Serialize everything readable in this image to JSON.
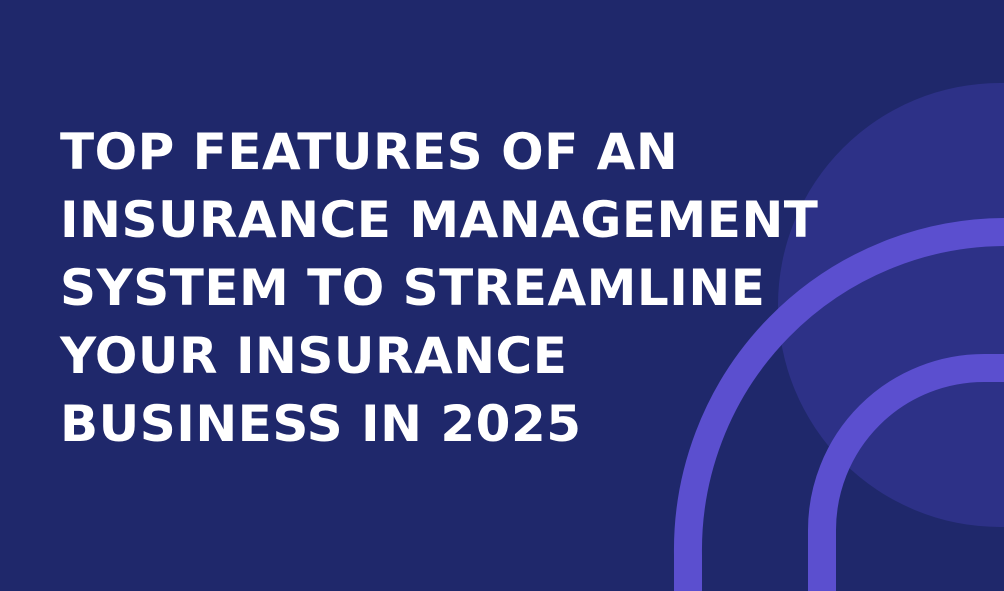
{
  "headline": {
    "lines": [
      "TOP FEATURES OF AN",
      "INSURANCE MANAGEMENT",
      "SYSTEM TO STREAMLINE",
      "YOUR INSURANCE",
      "BUSINESS IN 2025"
    ]
  },
  "colors": {
    "background": "#1f286b",
    "circle": "#2d3187",
    "arc": "#5b4fcf",
    "text": "#ffffff"
  }
}
